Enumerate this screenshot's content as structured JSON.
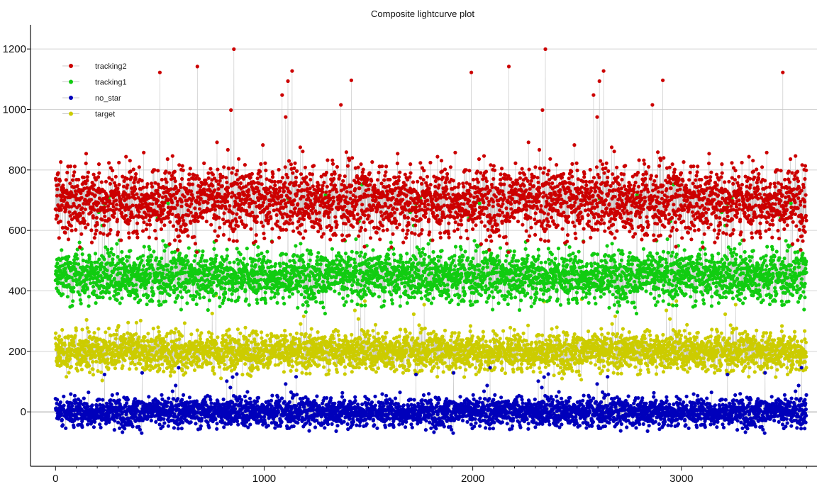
{
  "chart_data": {
    "type": "scatter",
    "title": "Composite lightcurve plot",
    "xlabel": "",
    "ylabel": "",
    "xlim": [
      -120,
      3650
    ],
    "ylim": [
      -180,
      1280
    ],
    "x_ticks": [
      0,
      1000,
      2000,
      3000
    ],
    "y_ticks": [
      0,
      200,
      400,
      600,
      800,
      1000,
      1200
    ],
    "grid": "horizontal",
    "legend_position": "top-left",
    "connecting_line_color": "#c8c8c8",
    "n_points_per_series": 3600,
    "series": [
      {
        "name": "tracking2",
        "color": "#cc0000",
        "mean": 700,
        "spread": 110,
        "min": 430,
        "max": 1213
      },
      {
        "name": "tracking1",
        "color": "#11cc11",
        "mean": 450,
        "spread": 80,
        "min": 250,
        "max": 760
      },
      {
        "name": "no_star",
        "color": "#0000bb",
        "mean": 0,
        "spread": 45,
        "min": -120,
        "max": 150
      },
      {
        "name": "target",
        "color": "#cccc00",
        "mean": 200,
        "spread": 60,
        "min": 30,
        "max": 400
      }
    ],
    "series_draw_order": [
      "target",
      "no_star",
      "tracking1",
      "tracking2"
    ]
  }
}
